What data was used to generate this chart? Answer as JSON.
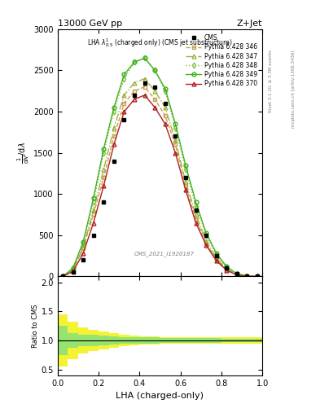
{
  "title": "13000 GeV pp",
  "title_right": "Z+Jet",
  "inner_title": "LHA $\\lambda^1_{0.5}$ (charged only) (CMS jet substructure)",
  "xlabel": "LHA (charged-only)",
  "ylabel": "1 / mathrm{d}N / mathrm{d} lambda",
  "ratio_ylabel": "Ratio to CMS",
  "watermark": "CMS_2021_I1920187",
  "rivet_text": "Rivet 3.1.10, ≥ 3.3M events",
  "mcplots_text": "mcplots.cern.ch [arXiv:1306.3436]",
  "x_bins": [
    0.0,
    0.05,
    0.1,
    0.15,
    0.2,
    0.25,
    0.3,
    0.35,
    0.4,
    0.45,
    0.5,
    0.55,
    0.6,
    0.65,
    0.7,
    0.75,
    0.8,
    0.85,
    0.9,
    0.95,
    1.0
  ],
  "cms_data": [
    0,
    50,
    200,
    500,
    900,
    1400,
    1900,
    2200,
    2350,
    2300,
    2100,
    1700,
    1200,
    800,
    500,
    250,
    100,
    30,
    5,
    0
  ],
  "p346_data": [
    0,
    80,
    350,
    750,
    1200,
    1700,
    2100,
    2250,
    2300,
    2150,
    1950,
    1600,
    1100,
    700,
    400,
    200,
    80,
    20,
    3,
    0
  ],
  "p347_data": [
    0,
    80,
    350,
    800,
    1300,
    1800,
    2200,
    2350,
    2400,
    2250,
    2050,
    1650,
    1150,
    750,
    430,
    220,
    90,
    22,
    4,
    0
  ],
  "p348_data": [
    0,
    100,
    400,
    900,
    1500,
    2000,
    2400,
    2600,
    2650,
    2500,
    2250,
    1800,
    1300,
    850,
    500,
    260,
    110,
    30,
    5,
    0
  ],
  "p349_data": [
    0,
    100,
    420,
    950,
    1550,
    2050,
    2450,
    2600,
    2650,
    2500,
    2280,
    1850,
    1350,
    900,
    530,
    280,
    120,
    32,
    6,
    0
  ],
  "p370_data": [
    0,
    60,
    280,
    650,
    1100,
    1600,
    2000,
    2150,
    2200,
    2050,
    1850,
    1500,
    1050,
    650,
    380,
    190,
    75,
    18,
    3,
    0
  ],
  "ratio_green_lo": [
    0.75,
    0.88,
    0.9,
    0.9,
    0.92,
    0.93,
    0.94,
    0.95,
    0.95,
    0.95,
    0.96,
    0.96,
    0.96,
    0.96,
    0.96,
    0.96,
    0.97,
    0.97,
    0.97,
    0.97
  ],
  "ratio_green_hi": [
    1.25,
    1.12,
    1.1,
    1.1,
    1.08,
    1.07,
    1.06,
    1.05,
    1.05,
    1.05,
    1.04,
    1.04,
    1.04,
    1.04,
    1.04,
    1.04,
    1.03,
    1.03,
    1.03,
    1.03
  ],
  "ratio_yellow_lo": [
    0.55,
    0.68,
    0.78,
    0.82,
    0.85,
    0.88,
    0.9,
    0.92,
    0.93,
    0.93,
    0.94,
    0.94,
    0.94,
    0.94,
    0.94,
    0.95,
    0.95,
    0.95,
    0.95,
    0.95
  ],
  "ratio_yellow_hi": [
    1.45,
    1.32,
    1.22,
    1.18,
    1.15,
    1.12,
    1.1,
    1.08,
    1.07,
    1.07,
    1.06,
    1.06,
    1.06,
    1.06,
    1.06,
    1.05,
    1.05,
    1.05,
    1.05,
    1.05
  ],
  "color_cms": "#000000",
  "color_346": "#c8a050",
  "color_347": "#a0b040",
  "color_348": "#80c040",
  "color_349": "#40b020",
  "color_370": "#b02020",
  "ylim_main": [
    0,
    3000
  ],
  "ylim_ratio": [
    0.4,
    2.1
  ],
  "yticks_main": [
    0,
    500,
    1000,
    1500,
    2000,
    2500,
    3000
  ],
  "yticks_ratio": [
    0.5,
    1.0,
    1.5,
    2.0
  ]
}
